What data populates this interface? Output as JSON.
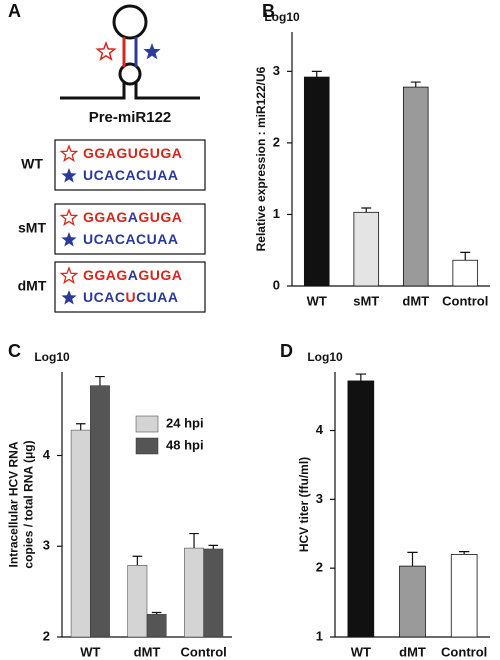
{
  "diagram": {
    "panel": "A",
    "hairpin_label": "Pre-miR122",
    "top_color": "#d7261e",
    "bottom_color": "#2b3a97",
    "sequences": [
      {
        "name": "WT",
        "top": [
          "GGAGUGUGA"
        ],
        "bottom": [
          "UCACACUAA"
        ]
      },
      {
        "name": "sMT",
        "top": [
          "GGAG",
          "A",
          "GUGA"
        ],
        "bottom": [
          "UCACACUAA"
        ]
      },
      {
        "name": "dMT",
        "top": [
          "GGAG",
          "A",
          "GUGA"
        ],
        "bottom": [
          "UCAC",
          "U",
          "CUAA"
        ]
      }
    ]
  },
  "chart_data": [
    {
      "type": "bar",
      "panel": "B",
      "y_top_label": "Log10",
      "ylabel": [
        "Relative expression : miR122/U6"
      ],
      "categories": [
        "WT",
        "sMT",
        "dMT",
        "Control"
      ],
      "values": [
        2.92,
        1.03,
        2.78,
        0.36
      ],
      "errors": [
        0.08,
        0.06,
        0.07,
        0.11
      ],
      "colors": [
        "#111111",
        "#e4e4e4",
        "#9a9a9a",
        "#ffffff"
      ],
      "ylim": [
        0,
        3.55
      ],
      "yticks": [
        0,
        1,
        2,
        3
      ]
    },
    {
      "type": "grouped_bar",
      "panel": "C",
      "y_top_label": "Log10",
      "ylabel": [
        "Intracellular HCV RNA",
        "copies / total RNA (μg)"
      ],
      "categories": [
        "WT",
        "dMT",
        "Control"
      ],
      "series": [
        {
          "name": "24 hpi",
          "color": "#d4d4d4",
          "values": [
            4.28,
            2.79,
            2.98
          ],
          "errors": [
            0.07,
            0.1,
            0.16
          ]
        },
        {
          "name": "48 hpi",
          "color": "#555555",
          "values": [
            4.77,
            2.25,
            2.97
          ],
          "errors": [
            0.1,
            0.02,
            0.04
          ]
        }
      ],
      "legend": "upper right",
      "ylim": [
        2,
        4.92
      ],
      "yticks": [
        2,
        3,
        4
      ]
    },
    {
      "type": "bar",
      "panel": "D",
      "y_top_label": "Log10",
      "ylabel": [
        "HCV titer (ffu/ml)"
      ],
      "categories": [
        "WT",
        "dMT",
        "Control"
      ],
      "values": [
        4.72,
        2.03,
        2.2
      ],
      "errors": [
        0.1,
        0.2,
        0.04
      ],
      "colors": [
        "#111111",
        "#9a9a9a",
        "#ffffff"
      ],
      "ylim": [
        1,
        4.85
      ],
      "yticks": [
        1,
        2,
        3,
        4
      ]
    }
  ]
}
